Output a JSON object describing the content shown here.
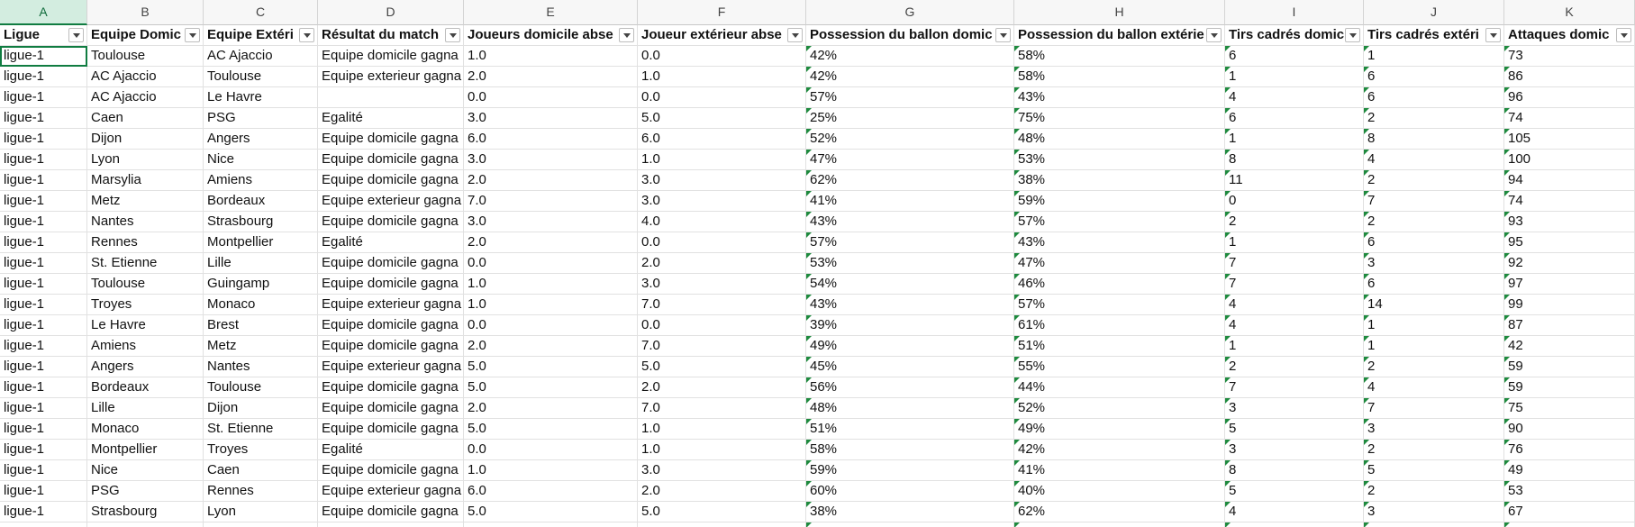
{
  "table": {
    "columns": [
      "A",
      "B",
      "C",
      "D",
      "E",
      "F",
      "G",
      "H",
      "I",
      "J",
      "K"
    ],
    "header": [
      "Ligue",
      "Equipe Domic",
      "Equipe Extéri",
      "Résultat du match",
      "Joueurs domicile abse",
      "Joueur extérieur abse",
      "Possession du ballon domic",
      "Possession du ballon extérie",
      "Tirs cadrés domic",
      "Tirs cadrés extéri",
      "Attaques domic"
    ],
    "rows": [
      [
        "ligue-1",
        "Toulouse",
        "AC Ajaccio",
        "Equipe domicile gagna",
        "1.0",
        "0.0",
        "42%",
        "58%",
        "6",
        "1",
        "73"
      ],
      [
        "ligue-1",
        "AC Ajaccio",
        "Toulouse",
        "Equipe exterieur gagna",
        "2.0",
        "1.0",
        "42%",
        "58%",
        "1",
        "6",
        "86"
      ],
      [
        "ligue-1",
        "AC Ajaccio",
        "Le Havre",
        null,
        "0.0",
        "0.0",
        "57%",
        "43%",
        "4",
        "6",
        "96"
      ],
      [
        "ligue-1",
        "Caen",
        "PSG",
        "Egalité",
        "3.0",
        "5.0",
        "25%",
        "75%",
        "6",
        "2",
        "74"
      ],
      [
        "ligue-1",
        "Dijon",
        "Angers",
        "Equipe domicile gagna",
        "6.0",
        "6.0",
        "52%",
        "48%",
        "1",
        "8",
        "105"
      ],
      [
        "ligue-1",
        "Lyon",
        "Nice",
        "Equipe domicile gagna",
        "3.0",
        "1.0",
        "47%",
        "53%",
        "8",
        "4",
        "100"
      ],
      [
        "ligue-1",
        "Marsylia",
        "Amiens",
        "Equipe domicile gagna",
        "2.0",
        "3.0",
        "62%",
        "38%",
        "11",
        "2",
        "94"
      ],
      [
        "ligue-1",
        "Metz",
        "Bordeaux",
        "Equipe exterieur gagna",
        "7.0",
        "3.0",
        "41%",
        "59%",
        "0",
        "7",
        "74"
      ],
      [
        "ligue-1",
        "Nantes",
        "Strasbourg",
        "Equipe domicile gagna",
        "3.0",
        "4.0",
        "43%",
        "57%",
        "2",
        "2",
        "93"
      ],
      [
        "ligue-1",
        "Rennes",
        "Montpellier",
        "Egalité",
        "2.0",
        "0.0",
        "57%",
        "43%",
        "1",
        "6",
        "95"
      ],
      [
        "ligue-1",
        "St. Etienne",
        "Lille",
        "Equipe domicile gagna",
        "0.0",
        "2.0",
        "53%",
        "47%",
        "7",
        "3",
        "92"
      ],
      [
        "ligue-1",
        "Toulouse",
        "Guingamp",
        "Equipe domicile gagna",
        "1.0",
        "3.0",
        "54%",
        "46%",
        "7",
        "6",
        "97"
      ],
      [
        "ligue-1",
        "Troyes",
        "Monaco",
        "Equipe exterieur gagna",
        "1.0",
        "7.0",
        "43%",
        "57%",
        "4",
        "14",
        "99"
      ],
      [
        "ligue-1",
        "Le Havre",
        "Brest",
        "Equipe domicile gagna",
        "0.0",
        "0.0",
        "39%",
        "61%",
        "4",
        "1",
        "87"
      ],
      [
        "ligue-1",
        "Amiens",
        "Metz",
        "Equipe domicile gagna",
        "2.0",
        "7.0",
        "49%",
        "51%",
        "1",
        "1",
        "42"
      ],
      [
        "ligue-1",
        "Angers",
        "Nantes",
        "Equipe exterieur gagna",
        "5.0",
        "5.0",
        "45%",
        "55%",
        "2",
        "2",
        "59"
      ],
      [
        "ligue-1",
        "Bordeaux",
        "Toulouse",
        "Equipe domicile gagna",
        "5.0",
        "2.0",
        "56%",
        "44%",
        "7",
        "4",
        "59"
      ],
      [
        "ligue-1",
        "Lille",
        "Dijon",
        "Equipe domicile gagna",
        "2.0",
        "7.0",
        "48%",
        "52%",
        "3",
        "7",
        "75"
      ],
      [
        "ligue-1",
        "Monaco",
        "St. Etienne",
        "Equipe domicile gagna",
        "5.0",
        "1.0",
        "51%",
        "49%",
        "5",
        "3",
        "90"
      ],
      [
        "ligue-1",
        "Montpellier",
        "Troyes",
        "Egalité",
        "0.0",
        "1.0",
        "58%",
        "42%",
        "3",
        "2",
        "76"
      ],
      [
        "ligue-1",
        "Nice",
        "Caen",
        "Equipe domicile gagna",
        "1.0",
        "3.0",
        "59%",
        "41%",
        "8",
        "5",
        "49"
      ],
      [
        "ligue-1",
        "PSG",
        "Rennes",
        "Equipe exterieur gagna",
        "6.0",
        "2.0",
        "60%",
        "40%",
        "5",
        "2",
        "53"
      ],
      [
        "ligue-1",
        "Strasbourg",
        "Lyon",
        "Equipe domicile gagna",
        "5.0",
        "5.0",
        "38%",
        "62%",
        "4",
        "3",
        "67"
      ]
    ]
  }
}
